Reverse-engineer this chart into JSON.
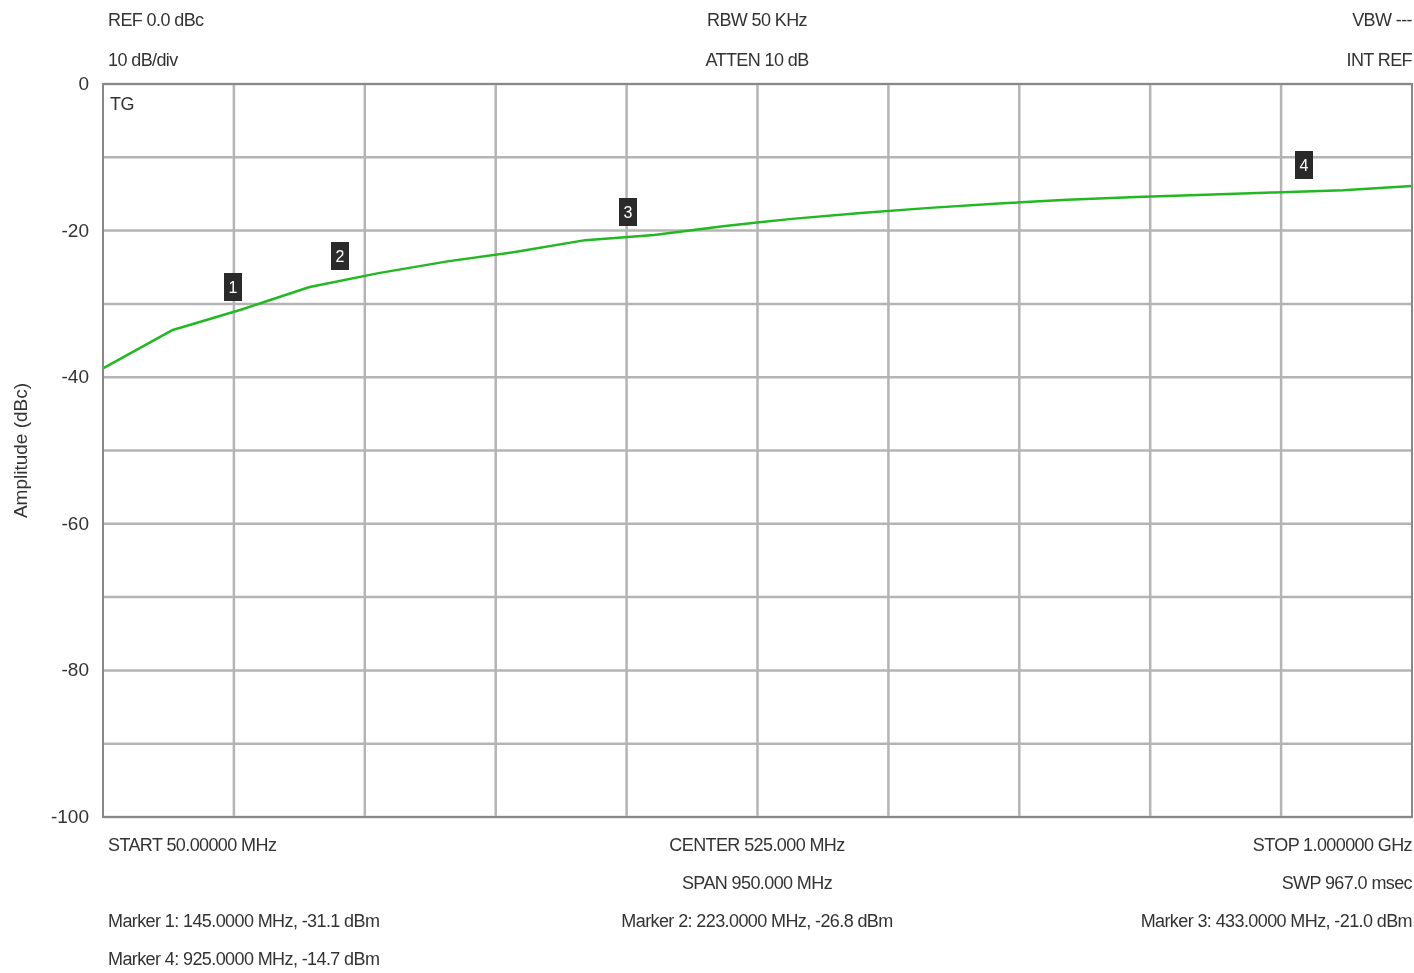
{
  "chart_data": {
    "type": "line",
    "ylabel": "Amplitude (dBc)",
    "categories": [
      null,
      null,
      null,
      null,
      null,
      null,
      null,
      null,
      null,
      null,
      null,
      null,
      null,
      null,
      null,
      null,
      null,
      null,
      null,
      null
    ],
    "ylim": [
      -100,
      0
    ],
    "yticks": [
      0,
      {
        "value": -10,
        "label": null
      },
      -20,
      {
        "value": -30,
        "label": null
      },
      -40,
      {
        "value": -50,
        "label": null
      },
      -60,
      {
        "value": -70,
        "label": null
      },
      -80,
      {
        "value": -90,
        "label": null
      },
      -100
    ],
    "tick_labels": "y",
    "grid": true,
    "line_style": "solid",
    "series": [
      {
        "color": "#22b822",
        "values": [
          -38.8,
          -33.6,
          -30.8,
          -27.7,
          -25.8,
          -24.2,
          -22.9,
          -21.3,
          -20.6,
          -19.4,
          -18.4,
          -17.6,
          -16.9,
          -16.3,
          -15.8,
          -15.4,
          -15.1,
          -14.8,
          -14.5,
          -13.9
        ]
      }
    ],
    "annotations": [
      "REF 0.0 dBc",
      "10 dB/div",
      "RBW 50 KHz",
      "ATTEN 10 dB",
      "VBW ---",
      "INT REF",
      "TG",
      "START 50.00000 MHz",
      "CENTER 525.000 MHz",
      "STOP 1.000000 GHz",
      "SPAN 950.000 MHz",
      "SWP 967.0 msec",
      "Marker 1: 145.0000 MHz, -31.1 dBm",
      "Marker 2: 223.0000 MHz, -26.8 dBm",
      "Marker 3: 433.0000 MHz, -21.0 dBm",
      "Marker 4: 925.0000 MHz, -14.7 dBm",
      "1",
      "2",
      "3",
      "4"
    ]
  }
}
